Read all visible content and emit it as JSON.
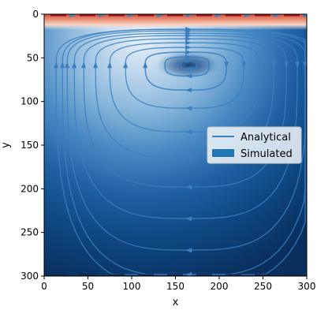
{
  "chart_data": {
    "type": "heatmap",
    "subtype": "streamplot",
    "title": "",
    "xlabel": "x",
    "ylabel": "y",
    "xlim": [
      0,
      300
    ],
    "ylim": [
      300,
      0
    ],
    "y_inverted": true,
    "xticks": [
      0,
      50,
      100,
      150,
      200,
      250,
      300
    ],
    "yticks": [
      0,
      50,
      100,
      150,
      200,
      250,
      300
    ],
    "colormap": "RdBu (velocity magnitude)",
    "colors": {
      "high": "#c0392b",
      "mid": "#deebf7",
      "low": "#0b3a73",
      "streamline": "#3a7fc0"
    },
    "vortex_center": {
      "x": 165,
      "y": 58
    },
    "lid_y": 0,
    "lid_direction": "right",
    "legend": {
      "placement": "center-right",
      "entries": [
        {
          "label": "Analytical",
          "marker": "line",
          "color": "#1f77b4"
        },
        {
          "label": "Simulated",
          "marker": "patch",
          "color": "#1f77b4"
        }
      ]
    },
    "grid": false
  }
}
